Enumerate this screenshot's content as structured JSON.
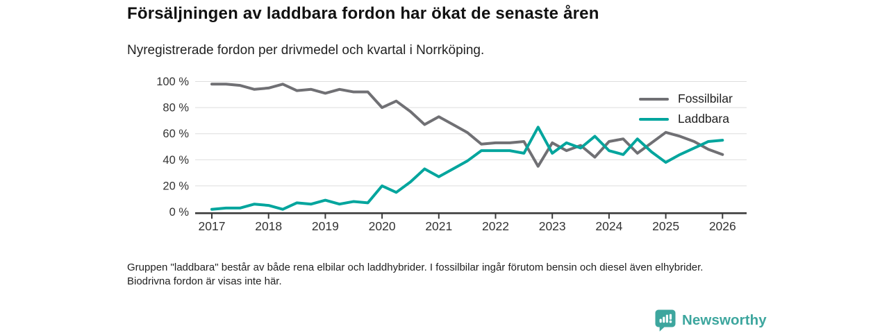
{
  "header": {
    "title": "Försäljningen av laddbara fordon har ökat de senaste åren",
    "subtitle": "Nyregistrerade fordon per drivmedel och kvartal i Norrköping."
  },
  "chart_data": {
    "type": "line",
    "x_unit": "quarter",
    "x_start": "2017 Q1",
    "points_per_year": 4,
    "x_ticks": [
      2017,
      2018,
      2019,
      2020,
      2021,
      2022,
      2023,
      2024,
      2025,
      2026
    ],
    "ylim": [
      0,
      100
    ],
    "y_ticks": [
      0,
      20,
      40,
      60,
      80,
      100
    ],
    "y_tick_suffix": " %",
    "grid": "horizontal",
    "legend_position": "top-right",
    "series": [
      {
        "name": "Fossilbilar",
        "color": "#707074",
        "values": [
          98,
          98,
          97,
          94,
          95,
          98,
          93,
          94,
          91,
          94,
          92,
          92,
          80,
          85,
          77,
          67,
          73,
          67,
          61,
          52,
          53,
          53,
          54,
          35,
          53,
          47,
          51,
          42,
          54,
          56,
          45,
          53,
          61,
          58,
          54,
          48,
          44
        ]
      },
      {
        "name": "Laddbara",
        "color": "#00a59d",
        "values": [
          2,
          3,
          3,
          6,
          5,
          2,
          7,
          6,
          9,
          6,
          8,
          7,
          20,
          15,
          23,
          33,
          27,
          33,
          39,
          47,
          47,
          47,
          45,
          65,
          45,
          53,
          49,
          58,
          47,
          44,
          56,
          46,
          38,
          44,
          49,
          54,
          55
        ]
      }
    ]
  },
  "footnote": "Gruppen \"laddbara\" består av både rena elbilar och laddhybrider. I fossilbilar ingår förutom bensin och diesel även elhybrider. Biodrivna fordon är visas inte här.",
  "logo": {
    "text": "Newsworthy",
    "color": "#3da69e",
    "icon": "bar-chart-bubble-icon"
  },
  "colors": {
    "axis": "#3b3b3b",
    "gridline": "#dddddd",
    "tick_label": "#333333"
  }
}
